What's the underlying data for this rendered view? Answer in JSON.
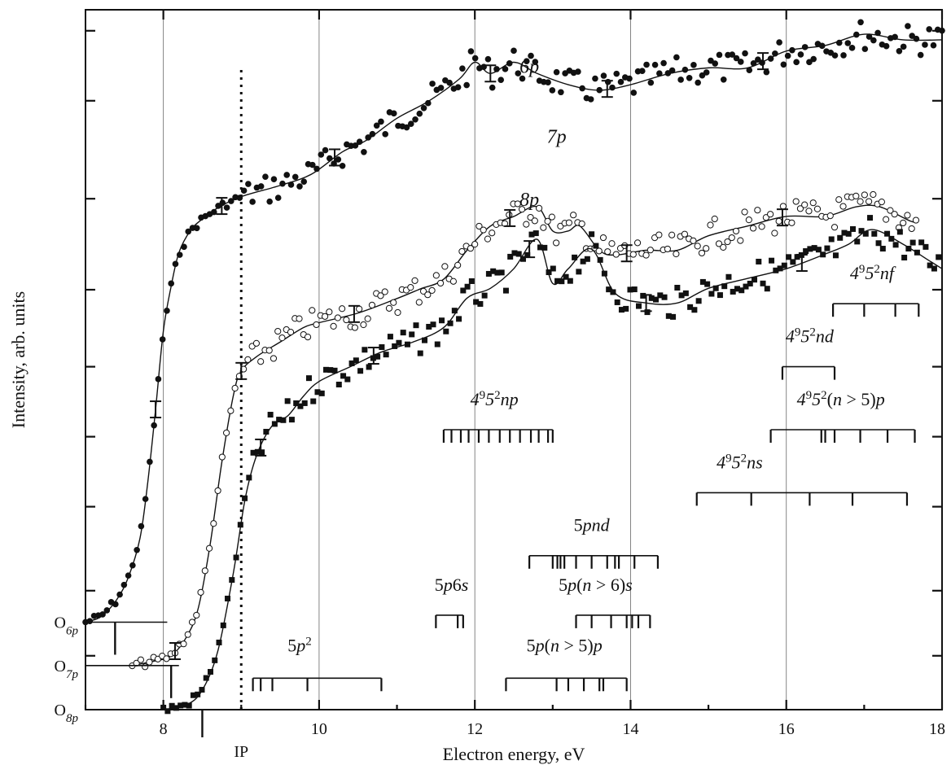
{
  "chart_data": {
    "type": "line",
    "xlabel": "Electron energy, eV",
    "ylabel": "Intensity, arb. units",
    "xlim": [
      7,
      18
    ],
    "x_ticks": [
      "8",
      "10",
      "12",
      "14",
      "16",
      "18"
    ],
    "grid_x": [
      8,
      12,
      14,
      16
    ],
    "grid_x_at_ticks": [
      10
    ],
    "ip_label": "IP",
    "ip_energy": 9.0,
    "ip_tick_energy": 8.5,
    "series": [
      {
        "name": "6p",
        "baseline_label_main": "O",
        "baseline_label_sub": "6p",
        "baseline_line_end": 8.05,
        "baseline_threshold": 7.38,
        "marker": "filled-circle",
        "curve": [
          [
            7.0,
            0.0
          ],
          [
            7.2,
            0.01
          ],
          [
            7.4,
            0.04
          ],
          [
            7.55,
            0.08
          ],
          [
            7.7,
            0.15
          ],
          [
            7.8,
            0.25
          ],
          [
            7.9,
            0.38
          ],
          [
            8.0,
            0.52
          ],
          [
            8.1,
            0.6
          ],
          [
            8.2,
            0.66
          ],
          [
            8.35,
            0.7
          ],
          [
            8.5,
            0.72
          ],
          [
            8.7,
            0.74
          ],
          [
            9.0,
            0.76
          ],
          [
            9.5,
            0.78
          ],
          [
            9.9,
            0.8
          ],
          [
            10.3,
            0.84
          ],
          [
            10.6,
            0.86
          ],
          [
            11.0,
            0.9
          ],
          [
            11.4,
            0.93
          ],
          [
            11.8,
            0.97
          ],
          [
            12.0,
            1.0
          ],
          [
            12.2,
            0.98
          ],
          [
            12.5,
            1.0
          ],
          [
            12.8,
            0.98
          ],
          [
            13.2,
            0.96
          ],
          [
            13.6,
            0.95
          ],
          [
            14.0,
            0.96
          ],
          [
            14.5,
            0.98
          ],
          [
            15.0,
            0.99
          ],
          [
            15.5,
            0.99
          ],
          [
            16.0,
            1.02
          ],
          [
            16.5,
            1.03
          ],
          [
            17.0,
            1.05
          ],
          [
            17.5,
            1.04
          ],
          [
            18.0,
            1.04
          ]
        ]
      },
      {
        "name": "7p",
        "baseline_label_main": "O",
        "baseline_label_sub": "7p",
        "baseline_line_end": 8.2,
        "baseline_threshold": 8.1,
        "marker": "open-circle",
        "curve": [
          [
            7.6,
            0.0
          ],
          [
            7.9,
            0.01
          ],
          [
            8.1,
            0.02
          ],
          [
            8.3,
            0.06
          ],
          [
            8.45,
            0.12
          ],
          [
            8.6,
            0.25
          ],
          [
            8.75,
            0.42
          ],
          [
            8.9,
            0.56
          ],
          [
            9.0,
            0.61
          ],
          [
            9.2,
            0.64
          ],
          [
            9.5,
            0.67
          ],
          [
            9.8,
            0.7
          ],
          [
            10.0,
            0.71
          ],
          [
            10.5,
            0.73
          ],
          [
            11.0,
            0.76
          ],
          [
            11.3,
            0.78
          ],
          [
            11.6,
            0.8
          ],
          [
            11.9,
            0.86
          ],
          [
            12.2,
            0.91
          ],
          [
            12.5,
            0.93
          ],
          [
            12.8,
            0.95
          ],
          [
            13.0,
            0.9
          ],
          [
            13.2,
            0.9
          ],
          [
            13.35,
            0.91
          ],
          [
            13.6,
            0.86
          ],
          [
            13.8,
            0.85
          ],
          [
            14.2,
            0.86
          ],
          [
            14.6,
            0.86
          ],
          [
            15.0,
            0.89
          ],
          [
            15.5,
            0.91
          ],
          [
            16.0,
            0.93
          ],
          [
            16.5,
            0.93
          ],
          [
            16.9,
            0.95
          ],
          [
            17.2,
            0.95
          ],
          [
            17.6,
            0.92
          ],
          [
            17.7,
            0.92
          ]
        ]
      },
      {
        "name": "8p",
        "baseline_label_main": "O",
        "baseline_label_sub": "8p",
        "baseline_line_end": 7.0,
        "baseline_threshold": 8.5,
        "marker": "filled-square",
        "curve": [
          [
            8.0,
            0.0
          ],
          [
            8.3,
            0.01
          ],
          [
            8.5,
            0.04
          ],
          [
            8.7,
            0.12
          ],
          [
            8.9,
            0.28
          ],
          [
            9.05,
            0.43
          ],
          [
            9.2,
            0.52
          ],
          [
            9.4,
            0.58
          ],
          [
            9.6,
            0.6
          ],
          [
            9.8,
            0.64
          ],
          [
            10.0,
            0.67
          ],
          [
            10.4,
            0.7
          ],
          [
            10.8,
            0.73
          ],
          [
            11.2,
            0.75
          ],
          [
            11.6,
            0.78
          ],
          [
            11.9,
            0.84
          ],
          [
            12.2,
            0.86
          ],
          [
            12.5,
            0.9
          ],
          [
            12.8,
            0.96
          ],
          [
            13.0,
            0.87
          ],
          [
            13.2,
            0.9
          ],
          [
            13.5,
            0.94
          ],
          [
            13.8,
            0.85
          ],
          [
            14.2,
            0.83
          ],
          [
            14.6,
            0.83
          ],
          [
            15.0,
            0.86
          ],
          [
            15.5,
            0.88
          ],
          [
            16.0,
            0.9
          ],
          [
            16.5,
            0.93
          ],
          [
            16.8,
            0.95
          ],
          [
            17.1,
            0.98
          ],
          [
            17.5,
            0.95
          ],
          [
            17.8,
            0.92
          ],
          [
            18.0,
            0.9
          ]
        ]
      }
    ],
    "y_ticks_fraction": [
      0.077,
      0.17,
      0.29,
      0.39,
      0.49,
      0.6,
      0.73,
      0.87,
      0.97
    ],
    "group_labels": [
      {
        "id": "4d95s2nf",
        "parts": [
          [
            "4",
            "d"
          ],
          [
            "9",
            "sup"
          ],
          [
            "5",
            "s"
          ],
          [
            "2",
            "sup"
          ],
          [
            "nf",
            "i"
          ]
        ],
        "x": 17.1,
        "y": 0.615
      },
      {
        "id": "4d95s2nd",
        "parts": [
          [
            "4",
            "d"
          ],
          [
            "9",
            "sup"
          ],
          [
            "5",
            "s"
          ],
          [
            "2",
            "sup"
          ],
          [
            "nd",
            "i"
          ]
        ],
        "x": 16.3,
        "y": 0.525
      },
      {
        "id": "4d95s2np",
        "parts": [
          [
            "4",
            "d"
          ],
          [
            "9",
            "sup"
          ],
          [
            "5",
            "s"
          ],
          [
            "2",
            "sup"
          ],
          [
            "np",
            "i"
          ]
        ],
        "x": 12.25,
        "y": 0.435
      },
      {
        "id": "4d95s2n5p",
        "parts": [
          [
            "4",
            "d"
          ],
          [
            "9",
            "sup"
          ],
          [
            "5",
            "s"
          ],
          [
            "2",
            "sup"
          ],
          [
            "(",
            ""
          ],
          [
            "n",
            "i"
          ],
          [
            " > 5)",
            ""
          ],
          [
            "p",
            "i"
          ]
        ],
        "x": 16.7,
        "y": 0.435
      },
      {
        "id": "4d95s2ns",
        "parts": [
          [
            "4",
            "d"
          ],
          [
            "9",
            "sup"
          ],
          [
            "5",
            "s"
          ],
          [
            "2",
            "sup"
          ],
          [
            "ns",
            "i"
          ]
        ],
        "x": 15.4,
        "y": 0.345
      },
      {
        "id": "5pnd",
        "parts": [
          [
            "5",
            ""
          ],
          [
            "pnd",
            "i"
          ]
        ],
        "x": 13.5,
        "y": 0.255
      },
      {
        "id": "5p6s",
        "parts": [
          [
            "5",
            ""
          ],
          [
            "p",
            "i"
          ],
          [
            "6",
            ""
          ],
          [
            "s",
            "i"
          ]
        ],
        "x": 11.7,
        "y": 0.17
      },
      {
        "id": "5pn6s",
        "parts": [
          [
            "5",
            ""
          ],
          [
            "p",
            "i"
          ],
          [
            "(",
            ""
          ],
          [
            "n",
            "i"
          ],
          [
            " > 6)",
            ""
          ],
          [
            "s",
            "i"
          ]
        ],
        "x": 13.55,
        "y": 0.17
      },
      {
        "id": "5p2",
        "parts": [
          [
            "5",
            ""
          ],
          [
            "p",
            "i"
          ],
          [
            "2",
            "sup"
          ]
        ],
        "x": 9.75,
        "y": 0.083
      },
      {
        "id": "5pn5p",
        "parts": [
          [
            "5",
            ""
          ],
          [
            "p",
            "i"
          ],
          [
            "(",
            ""
          ],
          [
            "n",
            "i"
          ],
          [
            " > 5)",
            ""
          ],
          [
            "p",
            "i"
          ]
        ],
        "x": 13.15,
        "y": 0.083
      }
    ],
    "level_groups": [
      {
        "id": "nf",
        "range": [
          16.6,
          17.7
        ],
        "y": 0.58,
        "ticks": [
          16.6,
          17.0,
          17.4,
          17.7
        ]
      },
      {
        "id": "nd",
        "range": [
          15.95,
          16.62
        ],
        "y": 0.49,
        "ticks": [
          15.95,
          16.62
        ]
      },
      {
        "id": "np",
        "range": [
          11.6,
          13.0
        ],
        "y": 0.4,
        "ticks": [
          11.6,
          11.7,
          11.82,
          11.92,
          12.05,
          12.18,
          12.32,
          12.45,
          12.58,
          12.72,
          12.82,
          12.94,
          13.0
        ]
      },
      {
        "id": "n5p",
        "range": [
          15.8,
          17.65
        ],
        "y": 0.4,
        "ticks": [
          15.8,
          16.45,
          16.5,
          16.62,
          16.95,
          17.3,
          17.65
        ]
      },
      {
        "id": "ns",
        "range": [
          14.85,
          17.55
        ],
        "y": 0.31,
        "ticks": [
          14.85,
          15.55,
          16.3,
          16.85,
          17.55
        ]
      },
      {
        "id": "pnd",
        "range": [
          12.7,
          14.35
        ],
        "y": 0.22,
        "ticks": [
          12.7,
          13.0,
          13.06,
          13.1,
          13.15,
          13.3,
          13.5,
          13.7,
          13.8,
          13.85,
          14.05,
          14.35
        ]
      },
      {
        "id": "p6s",
        "range": [
          11.5,
          11.85
        ],
        "y": 0.135,
        "ticks": [
          11.5,
          11.78,
          11.85
        ]
      },
      {
        "id": "pn6s",
        "range": [
          13.3,
          14.25
        ],
        "y": 0.135,
        "ticks": [
          13.3,
          13.5,
          13.75,
          13.95,
          14.02,
          14.1,
          14.25
        ]
      },
      {
        "id": "p2",
        "range": [
          9.15,
          10.8
        ],
        "y": 0.045,
        "ticks": [
          9.15,
          9.25,
          9.4,
          9.85,
          10.8
        ]
      },
      {
        "id": "pn5p",
        "range": [
          12.4,
          13.95
        ],
        "y": 0.045,
        "ticks": [
          12.4,
          13.05,
          13.2,
          13.4,
          13.6,
          13.65,
          13.95
        ]
      }
    ]
  }
}
